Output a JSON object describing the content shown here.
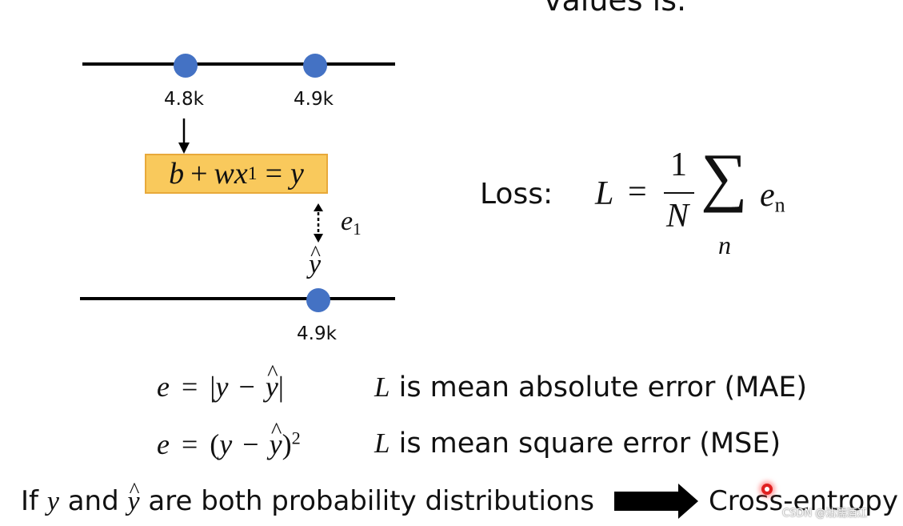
{
  "heading": {
    "fragment": "values is."
  },
  "diagram": {
    "top_points": [
      {
        "label": "4.8k"
      },
      {
        "label": "4.9k"
      }
    ],
    "bottom_point": {
      "label": "4.9k"
    },
    "model_eq": {
      "b": "b",
      "plus": "+",
      "w": "w",
      "x": "x",
      "x_sub": "1",
      "eq": "=",
      "y": "y"
    },
    "error_label": {
      "e": "e",
      "sub": "1"
    },
    "yhat": "y",
    "point_color": "#4472c4",
    "box_fill": "#f9c95c"
  },
  "loss": {
    "label": "Loss:",
    "L": "L",
    "eq": "=",
    "numerator": "1",
    "denominator": "N",
    "sigma": "∑",
    "sum_index": "n",
    "term": "e",
    "term_sub": "n"
  },
  "mae": {
    "e": "e",
    "eq": "=",
    "open": "|",
    "y": "y",
    "minus": "−",
    "yhat": "y",
    "close": "|",
    "desc_L": "L",
    "desc_text": " is mean absolute error (MAE)"
  },
  "mse": {
    "e": "e",
    "eq": "=",
    "open": "(",
    "y": "y",
    "minus": "−",
    "yhat": "y",
    "close": ")",
    "power": "2",
    "desc_L": "L",
    "desc_text": " is mean square error (MSE)"
  },
  "prob": {
    "prefix": "If ",
    "y": "y",
    "mid1": " and ",
    "yhat": "y",
    "mid2": " are both probability distributions",
    "result": "Cross-entropy"
  },
  "watermark": "CSDN @沽濡酒江",
  "cursor_color": "#e02020"
}
